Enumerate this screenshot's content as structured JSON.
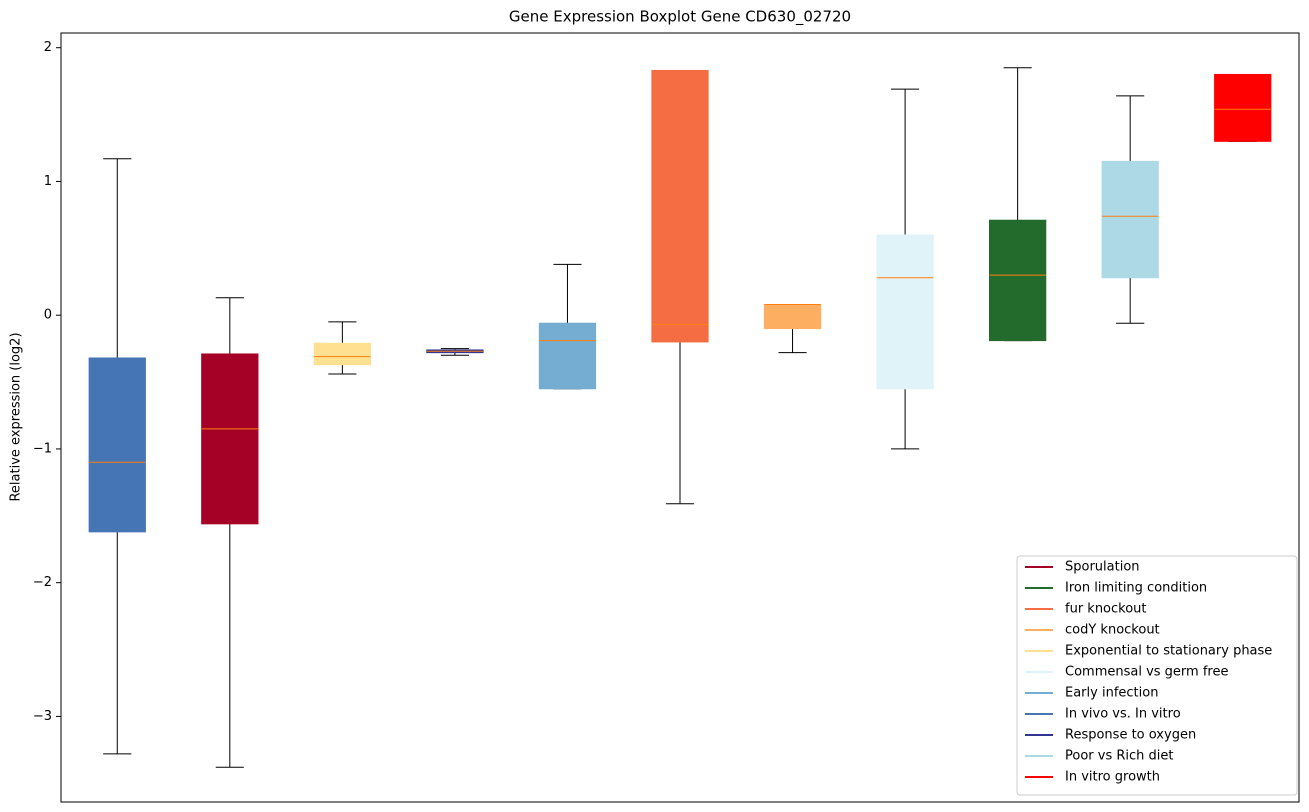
{
  "chart_data": {
    "type": "boxplot",
    "title": "Gene Expression Boxplot Gene CD630_02720",
    "y_label": "Relative expression (log2)",
    "xlim": [
      0.5,
      11.5
    ],
    "ylim": [
      -3.64,
      2.11
    ],
    "yticks": [
      {
        "value": -3,
        "label": "−3"
      },
      {
        "value": -2,
        "label": "−2"
      },
      {
        "value": -1,
        "label": "−1"
      },
      0,
      1,
      2
    ],
    "median_color": "#ff7f0e",
    "whisker_color": "#000000",
    "legend_position": "lower right",
    "series": [
      {
        "name": "Sporulation",
        "color": "#a50026",
        "position": 2,
        "low": -3.38,
        "q1": -1.56,
        "median": -0.85,
        "q3": -0.29,
        "high": 0.13
      },
      {
        "name": "Iron limiting condition",
        "color": "#236b2c",
        "position": 9,
        "low": -0.19,
        "q1": -0.19,
        "median": 0.3,
        "q3": 0.71,
        "high": 1.85
      },
      {
        "name": "fur knockout",
        "color": "#f46d43",
        "position": 6,
        "low": -1.41,
        "q1": -0.2,
        "median": -0.07,
        "q3": 1.83,
        "high": 1.83
      },
      {
        "name": "codY knockout",
        "color": "#fdae61",
        "position": 7,
        "low": -0.28,
        "q1": -0.1,
        "median": 0.08,
        "q3": 0.08,
        "high": 0.08
      },
      {
        "name": "Exponential to stationary phase",
        "color": "#fee090",
        "position": 3,
        "low": -0.44,
        "q1": -0.37,
        "median": -0.31,
        "q3": -0.21,
        "high": -0.05
      },
      {
        "name": "Commensal vs germ free",
        "color": "#e0f3f8",
        "position": 8,
        "low": -1.0,
        "q1": -0.55,
        "median": 0.28,
        "q3": 0.6,
        "high": 1.69
      },
      {
        "name": "Early infection",
        "color": "#74add1",
        "position": 5,
        "low": -0.55,
        "q1": -0.55,
        "median": -0.19,
        "q3": -0.06,
        "high": 0.38
      },
      {
        "name": "In vivo vs. In vitro",
        "color": "#4575b4",
        "position": 1,
        "low": -3.28,
        "q1": -1.62,
        "median": -1.1,
        "q3": -0.32,
        "high": 1.17
      },
      {
        "name": "Response to oxygen",
        "color": "#313695",
        "position": 4,
        "low": -0.3,
        "q1": -0.28,
        "median": -0.27,
        "q3": -0.26,
        "high": -0.25
      },
      {
        "name": "Poor vs Rich diet",
        "color": "#add8e6",
        "position": 10,
        "low": -0.06,
        "q1": 0.28,
        "median": 0.74,
        "q3": 1.15,
        "high": 1.64
      },
      {
        "name": "In vitro growth",
        "color": "#ff0000",
        "position": 11,
        "low": 1.3,
        "q1": 1.3,
        "median": 1.54,
        "q3": 1.8,
        "high": 1.8
      }
    ]
  }
}
